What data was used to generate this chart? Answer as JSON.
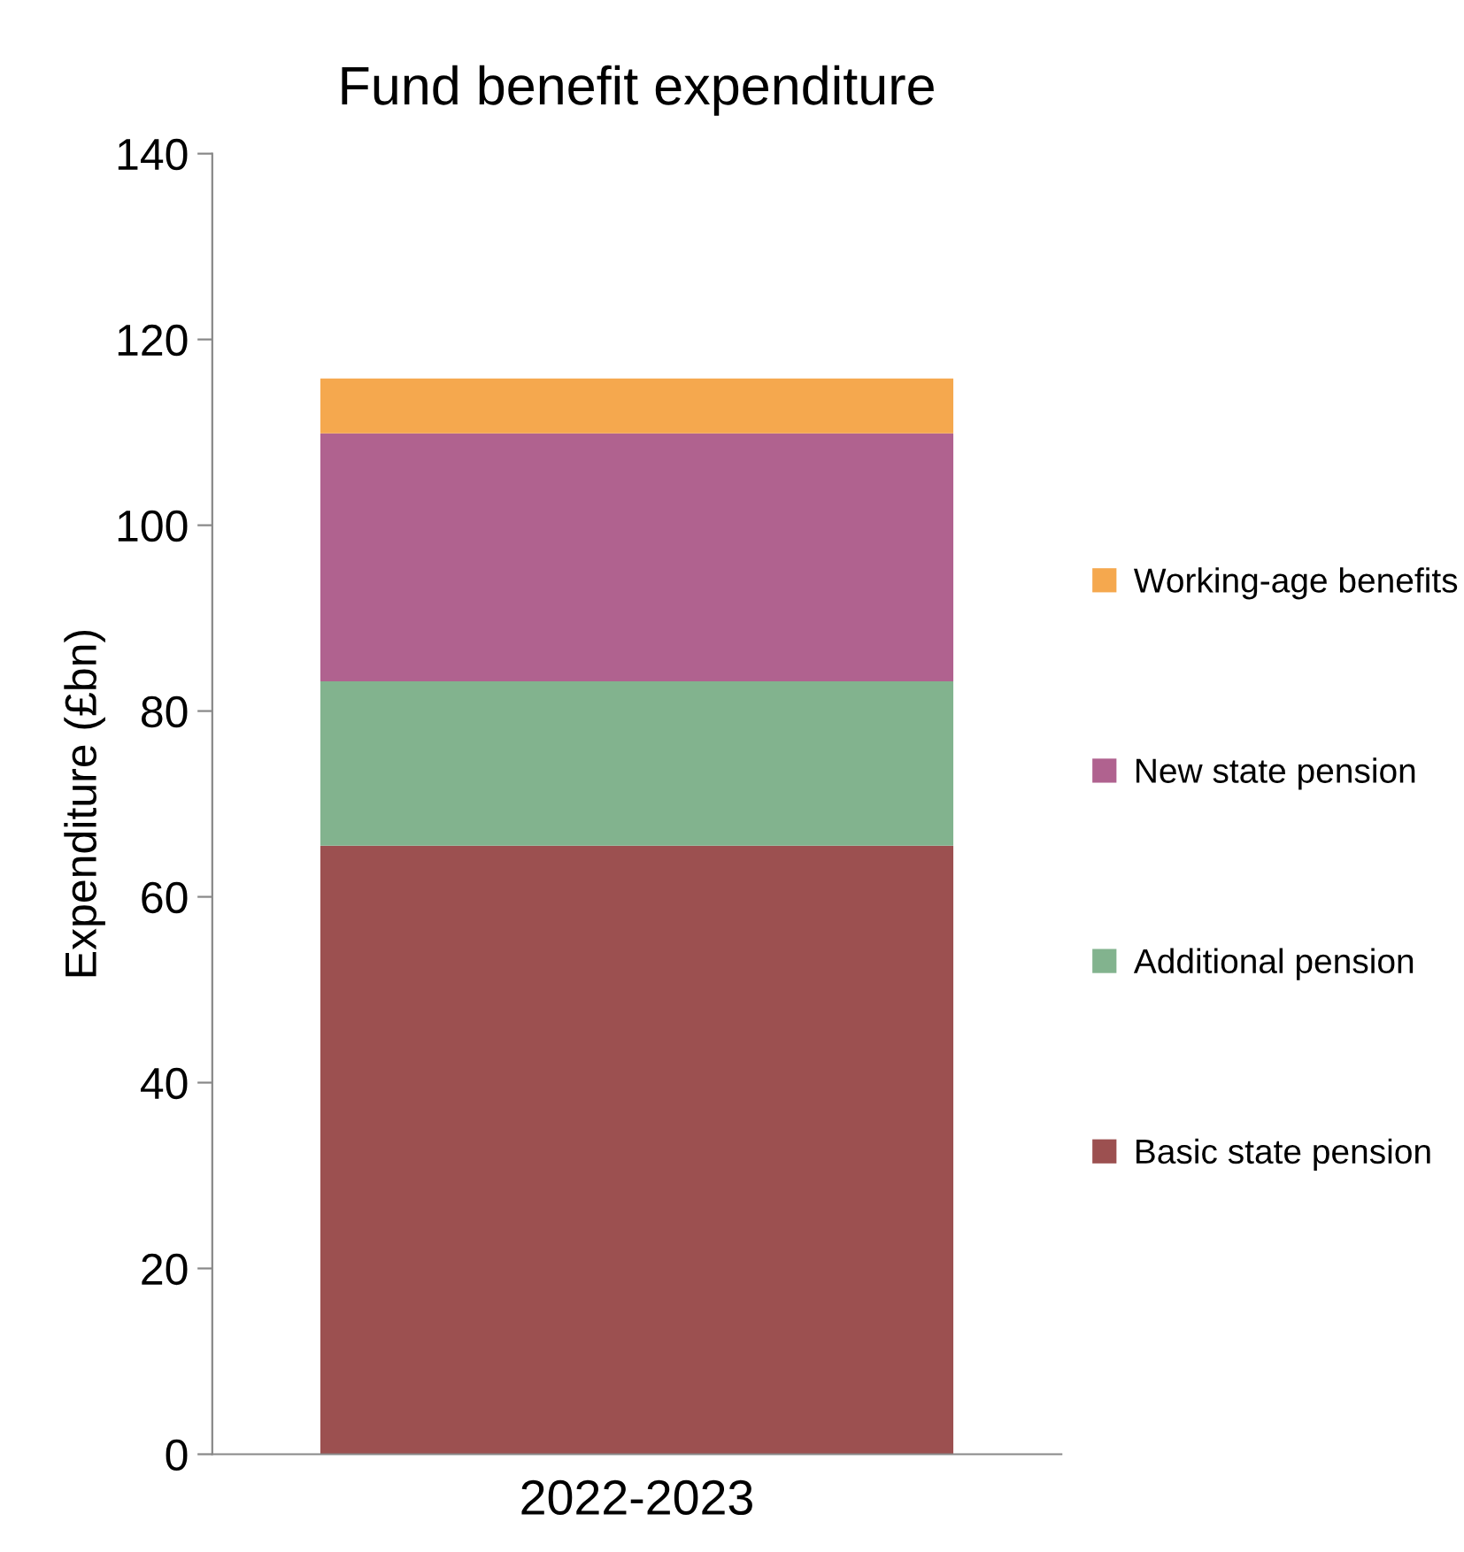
{
  "chart_data": {
    "type": "bar",
    "title": "Fund benefit expenditure",
    "ylabel": "Expenditure (£bn)",
    "categories": [
      "2022-2023"
    ],
    "stacked": true,
    "series": [
      {
        "name": "Basic state pension",
        "color": "#9c5050",
        "values": [
          65.5
        ]
      },
      {
        "name": "Additional pension",
        "color": "#82b38e",
        "values": [
          17.7
        ]
      },
      {
        "name": "New state pension",
        "color": "#b0628f",
        "values": [
          26.7
        ]
      },
      {
        "name": "Working-age benefits",
        "color": "#f5a84e",
        "values": [
          5.9
        ]
      }
    ],
    "ylim": [
      0,
      140
    ],
    "yticks": [
      0,
      20,
      40,
      60,
      80,
      100,
      120,
      140
    ],
    "grid": false,
    "legend": "right"
  }
}
